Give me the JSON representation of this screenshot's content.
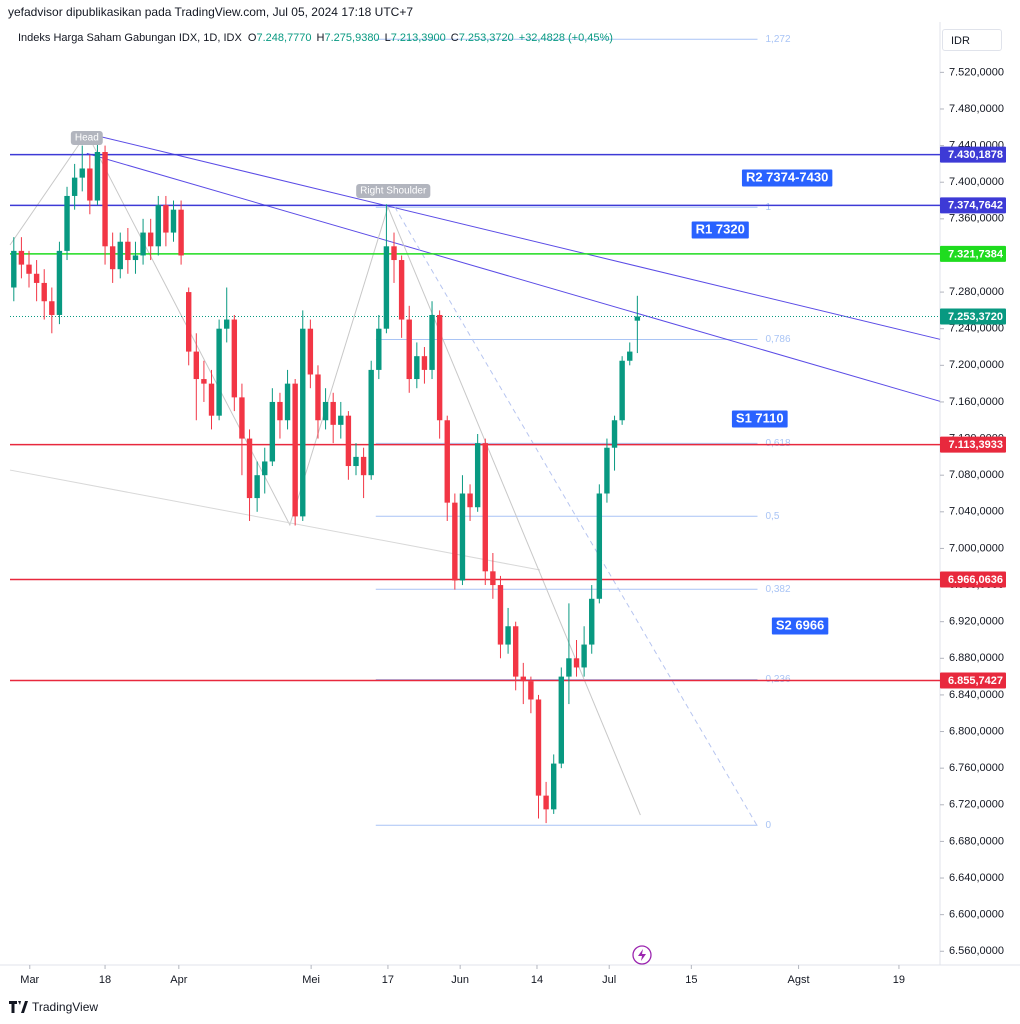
{
  "header": {
    "byline": "yefadvisor dipublikasikan pada TradingView.com, Jul 05, 2024 17:18 UTC+7",
    "symbol": "Indeks Harga Saham Gabungan IDX, 1D, IDX",
    "ohlc": [
      {
        "key": "O",
        "value": "7.248,7770"
      },
      {
        "key": "H",
        "value": "7.275,9380"
      },
      {
        "key": "L",
        "value": "7.213,3900"
      },
      {
        "key": "C",
        "value": "7.253,3720"
      }
    ],
    "change": "+32,4828 (+0,45%)"
  },
  "currency": "IDR",
  "brand": "TradingView",
  "chart_data": {
    "type": "candlestick",
    "up_color": "#089981",
    "down_color": "#f23645",
    "ohlc": [
      [
        7285,
        7340,
        7270,
        7325
      ],
      [
        7325,
        7340,
        7295,
        7310
      ],
      [
        7310,
        7325,
        7285,
        7300
      ],
      [
        7300,
        7315,
        7270,
        7290
      ],
      [
        7290,
        7305,
        7250,
        7270
      ],
      [
        7270,
        7285,
        7235,
        7255
      ],
      [
        7255,
        7335,
        7245,
        7325
      ],
      [
        7325,
        7395,
        7315,
        7385
      ],
      [
        7385,
        7420,
        7370,
        7405
      ],
      [
        7405,
        7440,
        7390,
        7415
      ],
      [
        7415,
        7430,
        7365,
        7380
      ],
      [
        7380,
        7454,
        7375,
        7433
      ],
      [
        7433,
        7440,
        7310,
        7330
      ],
      [
        7330,
        7345,
        7290,
        7305
      ],
      [
        7305,
        7345,
        7295,
        7335
      ],
      [
        7335,
        7350,
        7300,
        7315
      ],
      [
        7315,
        7335,
        7300,
        7320
      ],
      [
        7320,
        7360,
        7310,
        7345
      ],
      [
        7345,
        7360,
        7315,
        7330
      ],
      [
        7330,
        7385,
        7320,
        7375
      ],
      [
        7375,
        7385,
        7330,
        7345
      ],
      [
        7345,
        7380,
        7335,
        7370
      ],
      [
        7370,
        7380,
        7310,
        7320
      ],
      [
        7280,
        7285,
        7200,
        7215
      ],
      [
        7215,
        7235,
        7140,
        7185
      ],
      [
        7185,
        7205,
        7160,
        7180
      ],
      [
        7180,
        7195,
        7130,
        7145
      ],
      [
        7145,
        7250,
        7140,
        7240
      ],
      [
        7240,
        7285,
        7225,
        7250
      ],
      [
        7250,
        7255,
        7150,
        7165
      ],
      [
        7165,
        7180,
        7080,
        7120
      ],
      [
        7120,
        7130,
        7030,
        7055
      ],
      [
        7055,
        7095,
        7040,
        7080
      ],
      [
        7080,
        7110,
        7060,
        7095
      ],
      [
        7095,
        7175,
        7090,
        7160
      ],
      [
        7160,
        7170,
        7120,
        7140
      ],
      [
        7140,
        7195,
        7130,
        7180
      ],
      [
        7180,
        7185,
        7025,
        7035
      ],
      [
        7035,
        7260,
        7030,
        7240
      ],
      [
        7240,
        7250,
        7175,
        7190
      ],
      [
        7190,
        7200,
        7120,
        7140
      ],
      [
        7140,
        7175,
        7130,
        7160
      ],
      [
        7160,
        7170,
        7115,
        7135
      ],
      [
        7135,
        7160,
        7120,
        7145
      ],
      [
        7145,
        7150,
        7075,
        7090
      ],
      [
        7090,
        7115,
        7080,
        7100
      ],
      [
        7100,
        7110,
        7055,
        7080
      ],
      [
        7080,
        7205,
        7075,
        7195
      ],
      [
        7195,
        7255,
        7185,
        7240
      ],
      [
        7240,
        7376,
        7235,
        7330
      ],
      [
        7330,
        7345,
        7290,
        7315
      ],
      [
        7315,
        7320,
        7230,
        7250
      ],
      [
        7250,
        7265,
        7170,
        7185
      ],
      [
        7185,
        7225,
        7175,
        7210
      ],
      [
        7210,
        7220,
        7180,
        7195
      ],
      [
        7195,
        7270,
        7185,
        7255
      ],
      [
        7255,
        7260,
        7120,
        7140
      ],
      [
        7140,
        7145,
        7030,
        7050
      ],
      [
        7050,
        7060,
        6955,
        6965
      ],
      [
        6965,
        7080,
        6960,
        7060
      ],
      [
        7060,
        7070,
        7030,
        7045
      ],
      [
        7045,
        7125,
        7040,
        7115
      ],
      [
        7115,
        7120,
        6960,
        6975
      ],
      [
        6975,
        6995,
        6945,
        6960
      ],
      [
        6960,
        6970,
        6880,
        6895
      ],
      [
        6895,
        6935,
        6885,
        6915
      ],
      [
        6915,
        6920,
        6845,
        6860
      ],
      [
        6860,
        6875,
        6830,
        6855
      ],
      [
        6855,
        6860,
        6820,
        6835
      ],
      [
        6835,
        6840,
        6705,
        6730
      ],
      [
        6730,
        6745,
        6700,
        6715
      ],
      [
        6715,
        6775,
        6710,
        6765
      ],
      [
        6765,
        6870,
        6760,
        6860
      ],
      [
        6860,
        6940,
        6830,
        6880
      ],
      [
        6880,
        6900,
        6860,
        6870
      ],
      [
        6870,
        6915,
        6860,
        6895
      ],
      [
        6895,
        6960,
        6885,
        6945
      ],
      [
        6945,
        7070,
        6940,
        7060
      ],
      [
        7060,
        7120,
        7050,
        7110
      ],
      [
        7110,
        7145,
        7085,
        7140
      ],
      [
        7140,
        7210,
        7135,
        7205
      ],
      [
        7205,
        7225,
        7200,
        7215
      ],
      [
        7248.777,
        7275.938,
        7213.39,
        7253.372
      ]
    ],
    "xlim": [
      -0.5,
      121.8
    ],
    "xticks": [
      {
        "value": 2.1,
        "label": "Mar"
      },
      {
        "value": 12,
        "label": "18"
      },
      {
        "value": 21.7,
        "label": "Apr"
      },
      {
        "value": 39.1,
        "label": "Mei"
      },
      {
        "value": 49.2,
        "label": "17"
      },
      {
        "value": 58.7,
        "label": "Jun"
      },
      {
        "value": 68.8,
        "label": "14"
      },
      {
        "value": 78.3,
        "label": "Jul"
      },
      {
        "value": 89.1,
        "label": "15"
      },
      {
        "value": 103.2,
        "label": "Agst"
      },
      {
        "value": 116.4,
        "label": "19"
      }
    ],
    "ylim": [
      6545,
      7575
    ],
    "yticks": [
      {
        "value": 7520,
        "label": "7.520,0000"
      },
      {
        "value": 7480,
        "label": "7.480,0000"
      },
      {
        "value": 7440,
        "label": "7.440,0000"
      },
      {
        "value": 7400,
        "label": "7.400,0000"
      },
      {
        "value": 7360,
        "label": "7.360,0000"
      },
      {
        "value": 7280,
        "label": "7.280,0000"
      },
      {
        "value": 7240,
        "label": "7.240,0000"
      },
      {
        "value": 7200,
        "label": "7.200,0000"
      },
      {
        "value": 7160,
        "label": "7.160,0000"
      },
      {
        "value": 7120,
        "label": "7.120,0000"
      },
      {
        "value": 7080,
        "label": "7.080,0000"
      },
      {
        "value": 7040,
        "label": "7.040,0000"
      },
      {
        "value": 7000,
        "label": "7.000,0000"
      },
      {
        "value": 6960,
        "label": "6.960,0000"
      },
      {
        "value": 6920,
        "label": "6.920,0000"
      },
      {
        "value": 6880,
        "label": "6.880,0000"
      },
      {
        "value": 6840,
        "label": "6.840,0000"
      },
      {
        "value": 6800,
        "label": "6.800,0000"
      },
      {
        "value": 6760,
        "label": "6.760,0000"
      },
      {
        "value": 6720,
        "label": "6.720,0000"
      },
      {
        "value": 6680,
        "label": "6.680,0000"
      },
      {
        "value": 6640,
        "label": "6.640,0000"
      },
      {
        "value": 6600,
        "label": "6.600,0000"
      },
      {
        "value": 6560,
        "label": "6.560,0000"
      }
    ],
    "fib": {
      "price_range": [
        6697.6,
        7372.6
      ],
      "x_range": [
        47.6,
        97.8
      ],
      "color": "#a9c4f5",
      "levels": [
        {
          "value": 1.272,
          "label": "1,272"
        },
        1,
        {
          "value": 0.786,
          "label": "0,786"
        },
        {
          "value": 0.618,
          "label": "0,618"
        },
        {
          "value": 0.5,
          "label": "0,5"
        },
        {
          "value": 0.382,
          "label": "0,382"
        },
        {
          "value": 0.236,
          "label": "0,236"
        },
        0
      ]
    },
    "trendlines": [
      {
        "color": "#5b4ce6",
        "dash": false,
        "points": [
          [
            9.6,
            7453.4
          ],
          [
            121.8,
            7228.4
          ]
        ]
      },
      {
        "color": "#5b4ce6",
        "dash": false,
        "points": [
          [
            9.6,
            7431.5
          ],
          [
            121.8,
            7160.7
          ]
        ]
      },
      {
        "color": "#c8c8c8",
        "dash": false,
        "points": [
          [
            -0.5,
            7331.4
          ],
          [
            9.6,
            7453.7
          ],
          [
            36.3,
            7025.6
          ],
          [
            49.2,
            7372.9
          ]
        ]
      },
      {
        "color": "#d8d8d8",
        "dash": false,
        "points": [
          [
            -0.5,
            7085.6
          ],
          [
            69.2,
            6976.4
          ]
        ]
      },
      {
        "color": "#c8c8c8",
        "dash": false,
        "points": [
          [
            49.2,
            7372.9
          ],
          [
            82.4,
            6708.8
          ]
        ]
      },
      {
        "color": "#b7c5f0",
        "dash": true,
        "points": [
          [
            50.1,
            7372.9
          ],
          [
            97.7,
            6697.9
          ]
        ]
      }
    ],
    "levels": [
      {
        "value": 7430.1878,
        "label": "7.430,1878",
        "color": "#3d3ad6",
        "style": "solid"
      },
      {
        "value": 7374.7642,
        "label": "7.374,7642",
        "color": "#3d3ad6",
        "style": "solid"
      },
      {
        "value": 7321.7384,
        "label": "7.321,7384",
        "color": "#1fdc1f",
        "style": "solid"
      },
      {
        "value": 7253.372,
        "label": "7.253,3720",
        "color": "#089981",
        "style": "dotted"
      },
      {
        "value": 7113.3933,
        "label": "7.113,3933",
        "color": "#e8293d",
        "style": "solid"
      },
      {
        "value": 6966.0636,
        "label": "6.966,0636",
        "color": "#e8293d",
        "style": "solid"
      },
      {
        "value": 6855.7427,
        "label": "6.855,7427",
        "color": "#e8293d",
        "style": "solid"
      }
    ],
    "annotations": [
      {
        "text": "R2 7374-7430",
        "at": [
          101.7,
          7404.6
        ],
        "style": "box"
      },
      {
        "text": "R1 7320",
        "at": [
          92.9,
          7347.8
        ],
        "style": "box"
      },
      {
        "text": "S1 7110",
        "at": [
          98.1,
          7141.4
        ],
        "style": "box"
      },
      {
        "text": "S2 6966",
        "at": [
          103.4,
          6915.3
        ],
        "style": "box"
      },
      {
        "text": "Head",
        "at": [
          9.6,
          7448.3
        ],
        "style": "tag"
      },
      {
        "text": "Right Shoulder",
        "at": [
          49.9,
          7390.4
        ],
        "style": "tag"
      }
    ]
  }
}
